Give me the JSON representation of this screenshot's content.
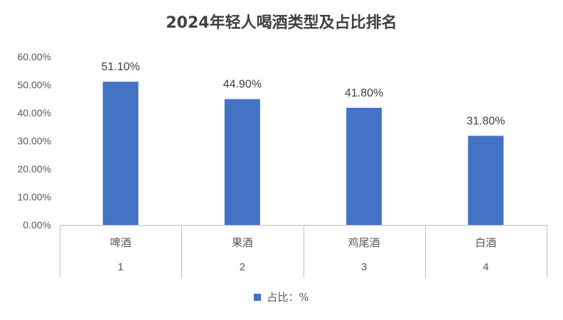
{
  "chart_data": {
    "type": "bar",
    "title": "2024年轻人喝酒类型及占比排名",
    "categories": [
      "啤酒",
      "果酒",
      "鸡尾酒",
      "白酒"
    ],
    "category_ranks": [
      "1",
      "2",
      "3",
      "4"
    ],
    "series": [
      {
        "name": "占比：%",
        "values": [
          0.511,
          0.449,
          0.418,
          0.318
        ],
        "color": "#4472C4"
      }
    ],
    "data_labels": [
      "51.10%",
      "44.90%",
      "41.80%",
      "31.80%"
    ],
    "ylim": [
      0,
      0.6
    ],
    "yticks": [
      0,
      0.1,
      0.2,
      0.3,
      0.4,
      0.5,
      0.6
    ],
    "ytick_labels": [
      "0.00%",
      "10.00%",
      "20.00%",
      "30.00%",
      "40.00%",
      "50.00%",
      "60.00%"
    ],
    "xlabel": "",
    "ylabel": "",
    "grid": false,
    "legend_position": "bottom"
  }
}
